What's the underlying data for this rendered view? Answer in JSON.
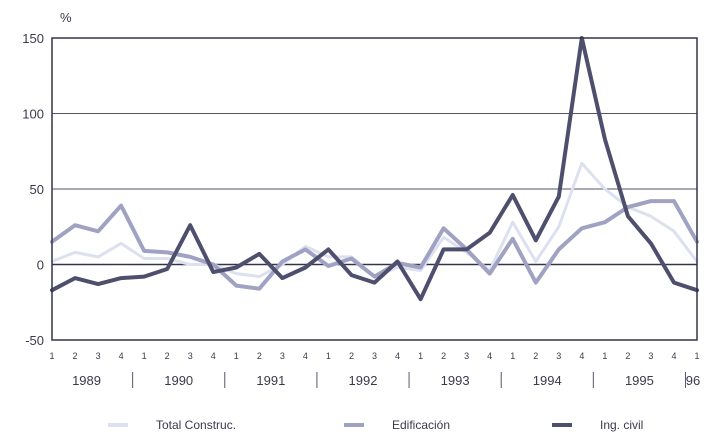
{
  "chart_data": {
    "type": "line",
    "title": "",
    "ylabel": "%",
    "xlabel": "",
    "ylim": [
      -50,
      150
    ],
    "yticks": [
      150,
      100,
      50,
      0,
      -50
    ],
    "grid": "horizontal",
    "legend_position": "bottom",
    "quarter_labels": [
      "1",
      "2",
      "3",
      "4",
      "1",
      "2",
      "3",
      "4",
      "1",
      "2",
      "3",
      "4",
      "1",
      "2",
      "3",
      "4",
      "1",
      "2",
      "3",
      "4",
      "1",
      "2",
      "3",
      "4",
      "1",
      "2",
      "3",
      "4",
      "1"
    ],
    "year_labels": [
      "1989",
      "1990",
      "1991",
      "1992",
      "1993",
      "1994",
      "1995",
      "96"
    ],
    "categories": [
      "1989 T1",
      "1989 T2",
      "1989 T3",
      "1989 T4",
      "1990 T1",
      "1990 T2",
      "1990 T3",
      "1990 T4",
      "1991 T1",
      "1991 T2",
      "1991 T3",
      "1991 T4",
      "1992 T1",
      "1992 T2",
      "1992 T3",
      "1992 T4",
      "1993 T1",
      "1993 T2",
      "1993 T3",
      "1993 T4",
      "1994 T1",
      "1994 T2",
      "1994 T3",
      "1994 T4",
      "1995 T1",
      "1995 T2",
      "1995 T3",
      "1995 T4",
      "1996 T1"
    ],
    "series": [
      {
        "name": "Total Construc.",
        "color": "#dde1ef",
        "width": 3,
        "values": [
          2,
          8,
          5,
          14,
          4,
          4,
          0,
          0,
          -6,
          -8,
          0,
          12,
          5,
          5,
          -8,
          -2,
          -4,
          18,
          8,
          -4,
          28,
          2,
          25,
          67,
          50,
          38,
          32,
          22,
          2
        ]
      },
      {
        "name": "Edificación",
        "color": "#9fa2c2",
        "width": 4,
        "values": [
          15,
          26,
          22,
          39,
          9,
          8,
          5,
          0,
          -14,
          -16,
          2,
          10,
          -1,
          4,
          -8,
          1,
          -2,
          24,
          10,
          -6,
          17,
          -12,
          10,
          24,
          28,
          38,
          42,
          42,
          15
        ]
      },
      {
        "name": "Ing. civil",
        "color": "#4d4f6d",
        "width": 4,
        "values": [
          -17,
          -9,
          -13,
          -9,
          -8,
          -3,
          26,
          -5,
          -2,
          7,
          -9,
          -2,
          10,
          -7,
          -12,
          2,
          -23,
          10,
          10,
          21,
          46,
          16,
          45,
          150,
          83,
          32,
          14,
          -12,
          -17
        ]
      }
    ]
  }
}
